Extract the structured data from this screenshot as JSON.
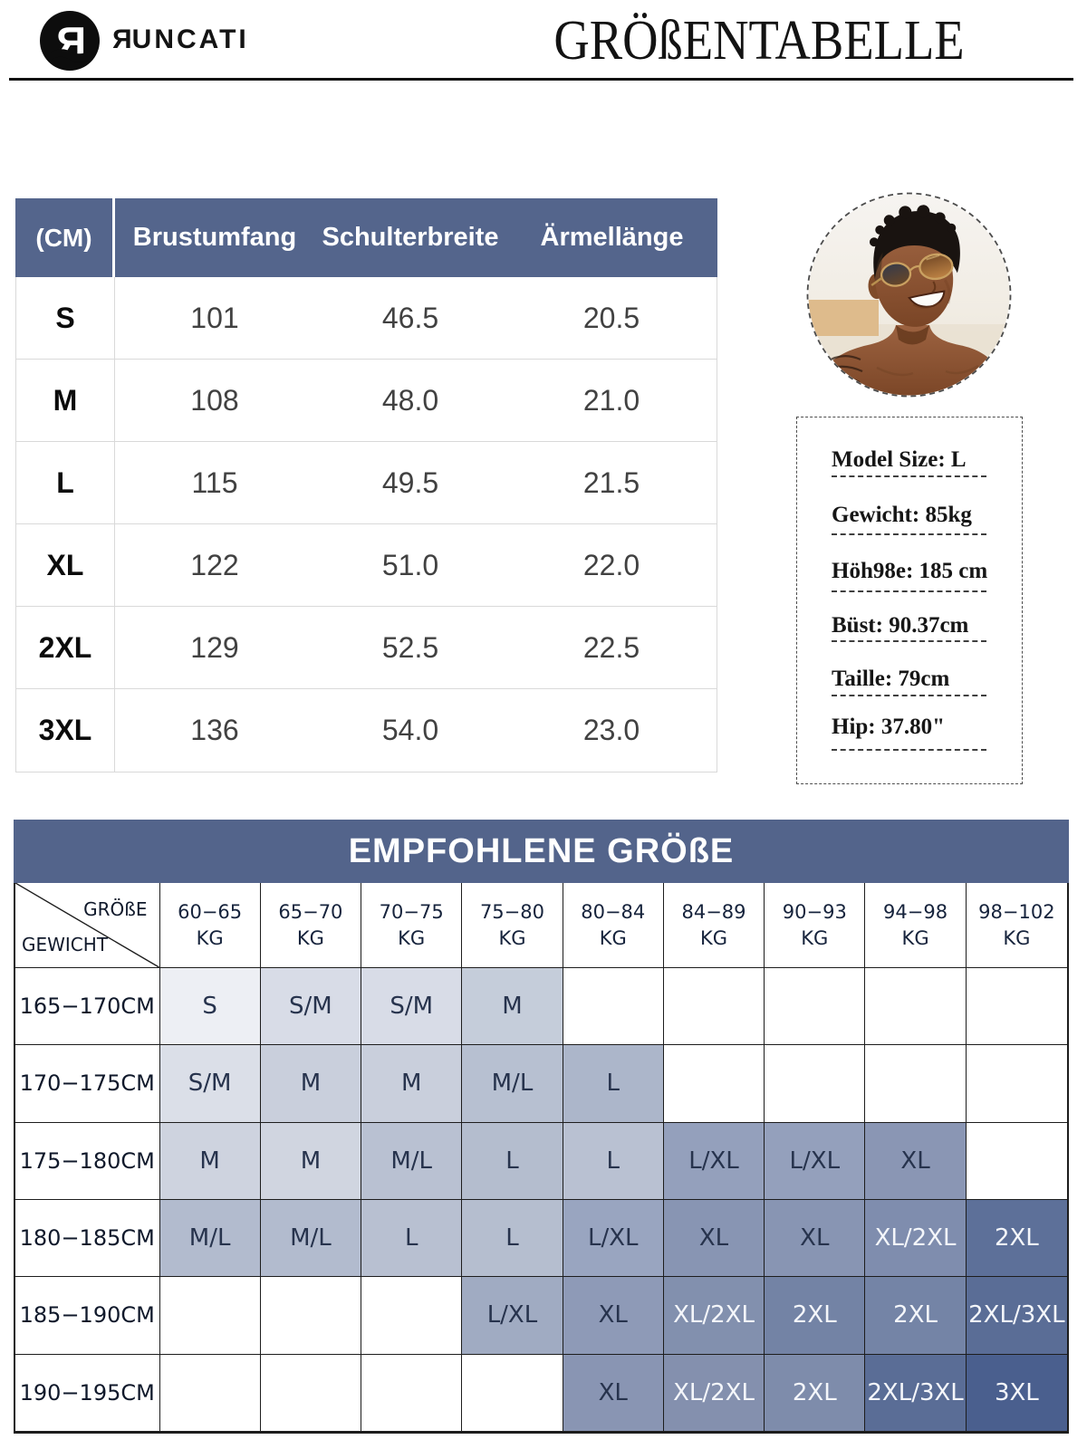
{
  "brand": {
    "name": "RUNCATI",
    "logo_letter": "R"
  },
  "title": "GRÖßENTABELLE",
  "size_table": {
    "unit_header": "(CM)",
    "columns": [
      "Brustumfang",
      "Schulterbreite",
      "Ärmellänge"
    ],
    "rows": [
      {
        "size": "S",
        "chest": "101",
        "shoulder": "46.5",
        "sleeve": "20.5"
      },
      {
        "size": "M",
        "chest": "108",
        "shoulder": "48.0",
        "sleeve": "21.0"
      },
      {
        "size": "L",
        "chest": "115",
        "shoulder": "49.5",
        "sleeve": "21.5"
      },
      {
        "size": "XL",
        "chest": "122",
        "shoulder": "51.0",
        "sleeve": "22.0"
      },
      {
        "size": "2XL",
        "chest": "129",
        "shoulder": "52.5",
        "sleeve": "22.5"
      },
      {
        "size": "3XL",
        "chest": "136",
        "shoulder": "54.0",
        "sleeve": "23.0"
      }
    ]
  },
  "model_card": {
    "specs": [
      "Model Size: L",
      "Gewicht: 85kg",
      "Höh98e: 185 cm",
      "Büst: 90.37cm",
      "Taille: 79cm",
      "Hip: 37.80\""
    ]
  },
  "recommendation": {
    "banner": "EMPFOHLENE GRÖßE",
    "corner_top": "GRÖßE",
    "corner_bottom": "GEWICHT",
    "weight_headers": [
      "60−65\nKG",
      "65−70\nKG",
      "70−75\nKG",
      "75−80\nKG",
      "80−84\nKG",
      "84−89\nKG",
      "90−93\nKG",
      "94−98\nKG",
      "98−102\nKG"
    ],
    "height_rows": [
      {
        "label": "165−170CM",
        "cells": [
          {
            "v": "S",
            "bg": "#edeff4"
          },
          {
            "v": "S/M",
            "bg": "#d8dce7"
          },
          {
            "v": "S/M",
            "bg": "#d8dce7"
          },
          {
            "v": "M",
            "bg": "#c5cdda"
          },
          null,
          null,
          null,
          null,
          null
        ]
      },
      {
        "label": "170−175CM",
        "cells": [
          {
            "v": "S/M",
            "bg": "#dbdfe8"
          },
          {
            "v": "M",
            "bg": "#c9cfdc"
          },
          {
            "v": "M",
            "bg": "#c9cfdc"
          },
          {
            "v": "M/L",
            "bg": "#b7c0d1"
          },
          {
            "v": "L",
            "bg": "#acb6ca"
          },
          null,
          null,
          null,
          null
        ]
      },
      {
        "label": "175−180CM",
        "cells": [
          {
            "v": "M",
            "bg": "#ced3df"
          },
          {
            "v": "M",
            "bg": "#d0d5e0"
          },
          {
            "v": "M/L",
            "bg": "#b9c1d2"
          },
          {
            "v": "L",
            "bg": "#b4bdce"
          },
          {
            "v": "L",
            "bg": "#b9c1d2"
          },
          {
            "v": "L/XL",
            "bg": "#94a0bc"
          },
          {
            "v": "L/XL",
            "bg": "#94a0bc"
          },
          {
            "v": "XL",
            "bg": "#8a96b4"
          },
          null
        ]
      },
      {
        "label": "180−185CM",
        "cells": [
          {
            "v": "M/L",
            "bg": "#b2bbce"
          },
          {
            "v": "M/L",
            "bg": "#b2bbce"
          },
          {
            "v": "L",
            "bg": "#b8c0d1"
          },
          {
            "v": "L",
            "bg": "#b5becf"
          },
          {
            "v": "L/XL",
            "bg": "#99a5c0"
          },
          {
            "v": "XL",
            "bg": "#8895b3"
          },
          {
            "v": "XL",
            "bg": "#8895b3"
          },
          {
            "v": "XL/2XL",
            "bg": "#7f8dae",
            "white": true
          },
          {
            "v": "2XL",
            "bg": "#5d7099",
            "white": true
          }
        ]
      },
      {
        "label": "185−190CM",
        "cells": [
          null,
          null,
          null,
          {
            "v": "L/XL",
            "bg": "#a0abc2"
          },
          {
            "v": "XL",
            "bg": "#8e9ab7"
          },
          {
            "v": "XL/2XL",
            "bg": "#8290ae",
            "white": true
          },
          {
            "v": "2XL",
            "bg": "#7383a5",
            "white": true
          },
          {
            "v": "2XL",
            "bg": "#7484a6",
            "white": true
          },
          {
            "v": "2XL/3XL",
            "bg": "#5a6d96",
            "white": true
          }
        ]
      },
      {
        "label": "190−195CM",
        "cells": [
          null,
          null,
          null,
          null,
          {
            "v": "XL",
            "bg": "#8995b3"
          },
          {
            "v": "XL/2XL",
            "bg": "#8490ae",
            "white": true
          },
          {
            "v": "2XL",
            "bg": "#7e8cab",
            "white": true
          },
          {
            "v": "2XL/3XL",
            "bg": "#5a6d96",
            "white": true
          },
          {
            "v": "3XL",
            "bg": "#4a5f8e",
            "white": true
          }
        ]
      }
    ]
  }
}
